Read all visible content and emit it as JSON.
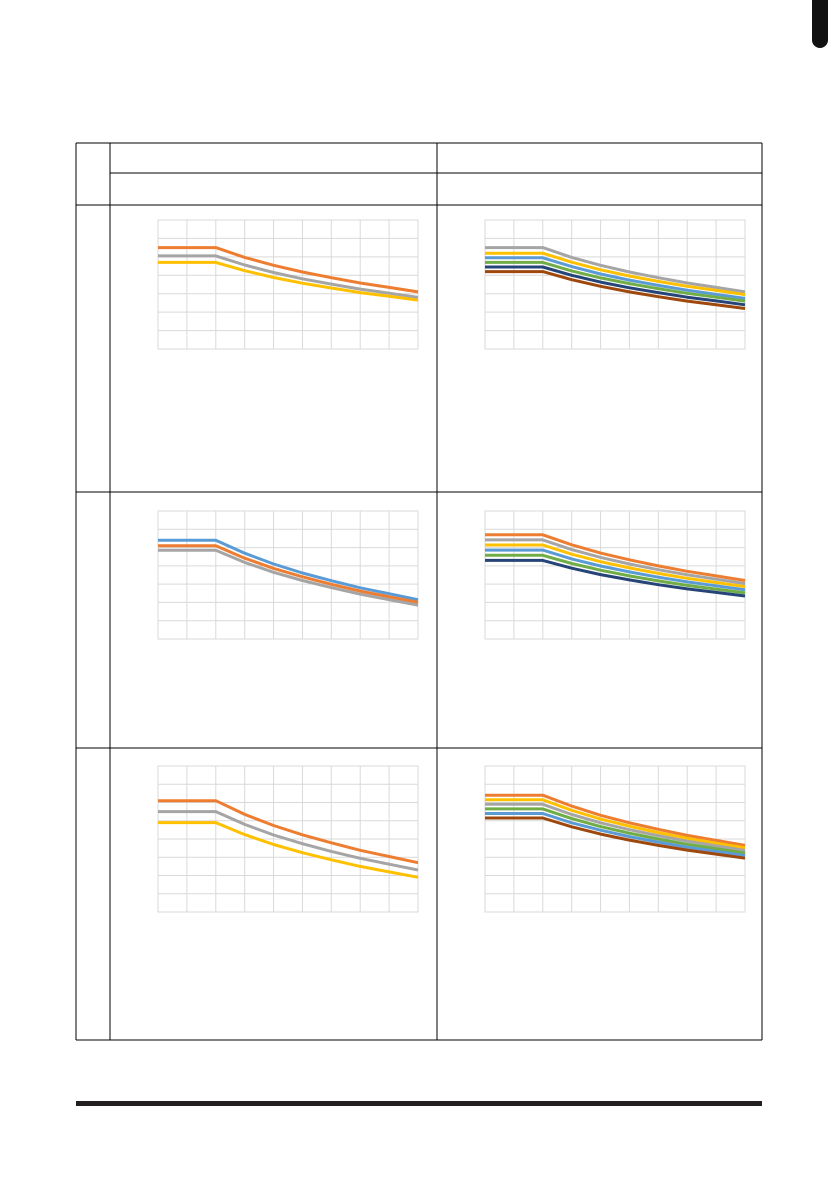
{
  "chart_data": [
    {
      "type": "line",
      "x": [
        0,
        1,
        2,
        3,
        4,
        5,
        6,
        7,
        8,
        9
      ],
      "xlim": [
        0,
        9
      ],
      "xticks": [
        0,
        1,
        2,
        3,
        4,
        5,
        6,
        7,
        8,
        9
      ],
      "ylim": [
        0,
        7
      ],
      "yticks": [
        0,
        1,
        2,
        3,
        4,
        5,
        6,
        7
      ],
      "grid": true,
      "series": [
        {
          "color": "#ed7d31",
          "values": [
            5.5,
            5.5,
            5.5,
            4.97,
            4.54,
            4.18,
            3.87,
            3.58,
            3.34,
            3.1
          ]
        },
        {
          "color": "#a5a5a5",
          "values": [
            5.05,
            5.05,
            5.05,
            4.56,
            4.15,
            3.81,
            3.52,
            3.25,
            3.03,
            2.8
          ]
        },
        {
          "color": "#ffc000",
          "values": [
            4.7,
            4.7,
            4.7,
            4.25,
            3.88,
            3.57,
            3.31,
            3.06,
            2.86,
            2.65
          ]
        }
      ]
    },
    {
      "type": "line",
      "x": [
        0,
        1,
        2,
        3,
        4,
        5,
        6,
        7,
        8,
        9
      ],
      "xlim": [
        0,
        9
      ],
      "xticks": [
        0,
        1,
        2,
        3,
        4,
        5,
        6,
        7,
        8,
        9
      ],
      "ylim": [
        0,
        7
      ],
      "yticks": [
        0,
        1,
        2,
        3,
        4,
        5,
        6,
        7
      ],
      "grid": true,
      "series": [
        {
          "color": "#a5a5a5",
          "values": [
            5.5,
            5.5,
            5.5,
            4.97,
            4.54,
            4.18,
            3.87,
            3.58,
            3.34,
            3.1
          ]
        },
        {
          "color": "#ffc000",
          "values": [
            5.2,
            5.2,
            5.2,
            4.71,
            4.3,
            3.96,
            3.67,
            3.4,
            3.18,
            2.95
          ]
        },
        {
          "color": "#5b9bd5",
          "values": [
            4.95,
            4.95,
            4.95,
            4.47,
            4.07,
            3.74,
            3.45,
            3.19,
            2.97,
            2.75
          ]
        },
        {
          "color": "#70ad47",
          "values": [
            4.7,
            4.7,
            4.7,
            4.24,
            3.86,
            3.55,
            3.27,
            3.02,
            2.81,
            2.6
          ]
        },
        {
          "color": "#264478",
          "values": [
            4.45,
            4.45,
            4.45,
            4.0,
            3.63,
            3.32,
            3.06,
            2.81,
            2.61,
            2.4
          ]
        },
        {
          "color": "#9e480e",
          "values": [
            4.2,
            4.2,
            4.2,
            3.76,
            3.4,
            3.1,
            2.84,
            2.6,
            2.4,
            2.2
          ]
        }
      ]
    },
    {
      "type": "line",
      "x": [
        0,
        1,
        2,
        3,
        4,
        5,
        6,
        7,
        8,
        9
      ],
      "xlim": [
        0,
        9
      ],
      "xticks": [
        0,
        1,
        2,
        3,
        4,
        5,
        6,
        7,
        8,
        9
      ],
      "ylim": [
        0,
        7
      ],
      "yticks": [
        0,
        1,
        2,
        3,
        4,
        5,
        6,
        7
      ],
      "grid": true,
      "series": [
        {
          "color": "#5b9bd5",
          "values": [
            5.4,
            5.4,
            5.4,
            4.69,
            4.1,
            3.61,
            3.19,
            2.8,
            2.48,
            2.15
          ]
        },
        {
          "color": "#ed7d31",
          "values": [
            5.1,
            5.1,
            5.1,
            4.42,
            3.86,
            3.4,
            2.99,
            2.62,
            2.31,
            2.0
          ]
        },
        {
          "color": "#a5a5a5",
          "values": [
            4.85,
            4.85,
            4.85,
            4.19,
            3.65,
            3.2,
            2.81,
            2.45,
            2.15,
            1.85
          ]
        }
      ]
    },
    {
      "type": "line",
      "x": [
        0,
        1,
        2,
        3,
        4,
        5,
        6,
        7,
        8,
        9
      ],
      "xlim": [
        0,
        9
      ],
      "xticks": [
        0,
        1,
        2,
        3,
        4,
        5,
        6,
        7,
        8,
        9
      ],
      "ylim": [
        0,
        7
      ],
      "yticks": [
        0,
        1,
        2,
        3,
        4,
        5,
        6,
        7
      ],
      "grid": true,
      "series": [
        {
          "color": "#ed7d31",
          "values": [
            5.7,
            5.7,
            5.7,
            5.15,
            4.7,
            4.33,
            4.0,
            3.7,
            3.45,
            3.2
          ]
        },
        {
          "color": "#a5a5a5",
          "values": [
            5.42,
            5.42,
            5.42,
            4.89,
            4.46,
            4.1,
            3.79,
            3.51,
            3.27,
            3.03
          ]
        },
        {
          "color": "#ffc000",
          "values": [
            5.14,
            5.14,
            5.14,
            4.64,
            4.23,
            3.89,
            3.59,
            3.32,
            3.09,
            2.86
          ]
        },
        {
          "color": "#5b9bd5",
          "values": [
            4.86,
            4.86,
            4.86,
            4.38,
            3.99,
            3.67,
            3.38,
            3.12,
            2.91,
            2.69
          ]
        },
        {
          "color": "#70ad47",
          "values": [
            4.58,
            4.58,
            4.58,
            4.13,
            3.76,
            3.45,
            3.18,
            2.93,
            2.73,
            2.52
          ]
        },
        {
          "color": "#264478",
          "values": [
            4.3,
            4.3,
            4.3,
            3.87,
            3.52,
            3.23,
            2.97,
            2.74,
            2.55,
            2.35
          ]
        }
      ]
    },
    {
      "type": "line",
      "x": [
        0,
        1,
        2,
        3,
        4,
        5,
        6,
        7,
        8,
        9
      ],
      "xlim": [
        0,
        9
      ],
      "xticks": [
        0,
        1,
        2,
        3,
        4,
        5,
        6,
        7,
        8,
        9
      ],
      "ylim": [
        0,
        8
      ],
      "yticks": [
        0,
        1,
        2,
        3,
        4,
        5,
        6,
        7,
        8
      ],
      "grid": true,
      "series": [
        {
          "color": "#ed7d31",
          "values": [
            6.1,
            6.1,
            6.1,
            5.35,
            4.74,
            4.23,
            3.79,
            3.38,
            3.04,
            2.7
          ]
        },
        {
          "color": "#a5a5a5",
          "values": [
            5.5,
            5.5,
            5.5,
            4.8,
            4.22,
            3.74,
            3.32,
            2.94,
            2.62,
            2.3
          ]
        },
        {
          "color": "#ffc000",
          "values": [
            4.9,
            4.9,
            4.9,
            4.24,
            3.7,
            3.25,
            2.86,
            2.5,
            2.2,
            1.9
          ]
        }
      ]
    },
    {
      "type": "line",
      "x": [
        0,
        1,
        2,
        3,
        4,
        5,
        6,
        7,
        8,
        9
      ],
      "xlim": [
        0,
        9
      ],
      "xticks": [
        0,
        1,
        2,
        3,
        4,
        5,
        6,
        7,
        8,
        9
      ],
      "ylim": [
        0,
        8
      ],
      "yticks": [
        0,
        1,
        2,
        3,
        4,
        5,
        6,
        7,
        8
      ],
      "grid": true,
      "series": [
        {
          "color": "#ed7d31",
          "values": [
            6.4,
            6.4,
            6.4,
            5.8,
            5.3,
            4.89,
            4.53,
            4.2,
            3.93,
            3.65
          ]
        },
        {
          "color": "#ffc000",
          "values": [
            6.15,
            6.15,
            6.15,
            5.57,
            5.09,
            4.7,
            4.35,
            4.04,
            3.77,
            3.51
          ]
        },
        {
          "color": "#a5a5a5",
          "values": [
            5.9,
            5.9,
            5.9,
            5.34,
            4.89,
            4.51,
            4.18,
            3.88,
            3.62,
            3.37
          ]
        },
        {
          "color": "#70ad47",
          "values": [
            5.65,
            5.65,
            5.65,
            5.12,
            4.68,
            4.32,
            4.0,
            3.71,
            3.47,
            3.23
          ]
        },
        {
          "color": "#5b9bd5",
          "values": [
            5.4,
            5.4,
            5.4,
            4.89,
            4.48,
            4.13,
            3.83,
            3.55,
            3.32,
            3.09
          ]
        },
        {
          "color": "#9e480e",
          "values": [
            5.15,
            5.15,
            5.15,
            4.67,
            4.27,
            3.94,
            3.65,
            3.39,
            3.17,
            2.95
          ]
        }
      ]
    }
  ]
}
